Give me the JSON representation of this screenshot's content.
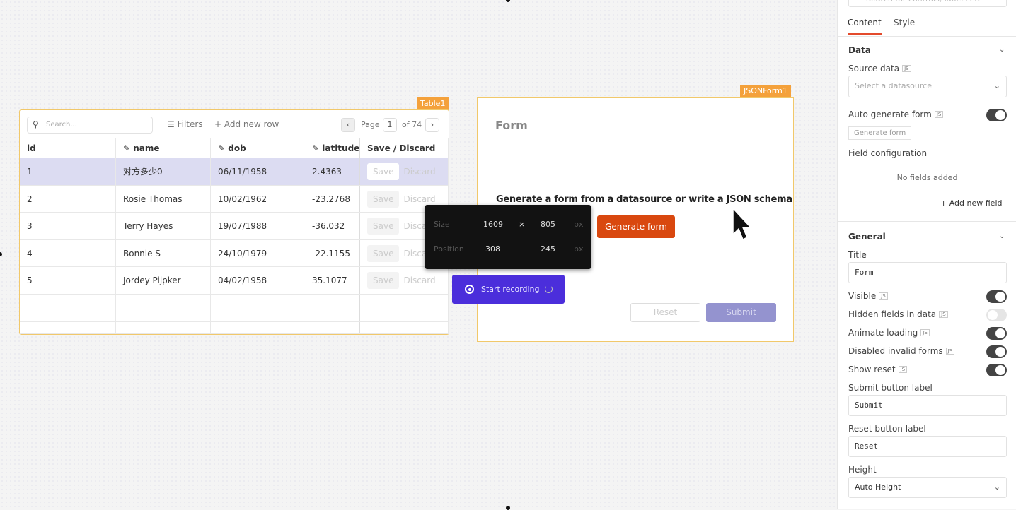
{
  "table": {
    "widget_label": "Table1",
    "search_placeholder": "Search...",
    "filters": "Filters",
    "add_row": "Add new row",
    "page_label": "Page",
    "page": "1",
    "page_of": "of 74",
    "columns": [
      "id",
      "name",
      "dob",
      "latitude",
      "Save / Discard"
    ],
    "rows": [
      [
        "1",
        "对方多少0",
        "06/11/1958",
        "2.4363"
      ],
      [
        "2",
        "Rosie Thomas",
        "10/02/1962",
        "-23.2768"
      ],
      [
        "3",
        "Terry Hayes",
        "19/07/1988",
        "-36.032"
      ],
      [
        "4",
        "Bonnie S",
        "24/10/1979",
        "-22.1155"
      ],
      [
        "5",
        "Jordey Pijpker",
        "04/02/1958",
        "35.1077"
      ]
    ],
    "save": "Save",
    "discard": "Discard",
    "selected_row_color": "#dcdcf2"
  },
  "overlay": {
    "size_label": "Size",
    "width": "1609",
    "times": "×",
    "height": "805",
    "unit": "px",
    "position_label": "Position",
    "x": "308",
    "y": "245",
    "record": "Start recording",
    "record_color": "#4b2edb"
  },
  "form": {
    "widget_label": "JSONForm1",
    "title": "Form",
    "message": "Generate a form from a datasource or write a JSON schema",
    "generate": "Generate form",
    "reset": "Reset",
    "submit": "Submit",
    "accent": "#d9480f"
  },
  "panel": {
    "search_placeholder": "Search for controls, labels etc",
    "tabs": [
      "Content",
      "Style"
    ],
    "data_section": "Data",
    "source_data": "Source data",
    "source_placeholder": "Select a datasource",
    "auto_generate": "Auto generate form",
    "generate_form": "Generate form",
    "field_config": "Field configuration",
    "no_fields": "No fields added",
    "add_field": "Add new field",
    "general_section": "General",
    "title_label": "Title",
    "title_value": "Form",
    "visible": "Visible",
    "hidden_fields": "Hidden fields in data",
    "animate": "Animate loading",
    "disabled_invalid": "Disabled invalid forms",
    "show_reset": "Show reset",
    "submit_label": "Submit button label",
    "submit_value": "Submit",
    "reset_label": "Reset button label",
    "reset_value": "Reset",
    "height_label": "Height",
    "height_value": "Auto Height",
    "js": "JS",
    "toggles": {
      "auto_generate": true,
      "visible": true,
      "hidden_fields": false,
      "animate": true,
      "disabled_invalid": true,
      "show_reset": true
    }
  }
}
